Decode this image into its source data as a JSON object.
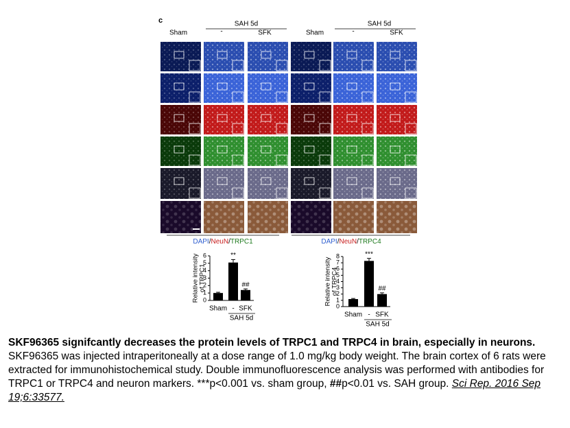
{
  "figure": {
    "panel_label": "c",
    "column_groups": [
      {
        "sham": "Sham",
        "group": "SAH 5d",
        "minus": "-",
        "drug": "SFK"
      },
      {
        "sham": "Sham",
        "group": "SAH 5d",
        "minus": "-",
        "drug": "SFK"
      }
    ],
    "stain_legends": [
      [
        {
          "text": "DAPI",
          "color": "#2f5fd0"
        },
        {
          "text": "/",
          "color": "#000000"
        },
        {
          "text": "NeuN",
          "color": "#c81e1e"
        },
        {
          "text": "/",
          "color": "#000000"
        },
        {
          "text": "TRPC1",
          "color": "#1e7a1e"
        }
      ],
      [
        {
          "text": "DAPI",
          "color": "#2f5fd0"
        },
        {
          "text": "/",
          "color": "#000000"
        },
        {
          "text": "NeuN",
          "color": "#c81e1e"
        },
        {
          "text": "/",
          "color": "#000000"
        },
        {
          "text": "TRPC4",
          "color": "#1e7a1e"
        }
      ]
    ]
  },
  "chart_data": [
    {
      "type": "bar",
      "y_label": [
        "Relative intensity",
        "of TRPC1"
      ],
      "categories": [
        "Sham",
        "-",
        "SFK"
      ],
      "group_label": "SAH 5d",
      "values": [
        1.0,
        5.1,
        1.4
      ],
      "errors": [
        0.1,
        0.4,
        0.15
      ],
      "annotations": [
        {
          "index": 1,
          "text": "**"
        },
        {
          "index": 2,
          "text": "##"
        }
      ],
      "color": "#000000",
      "ylim": [
        0,
        6
      ],
      "yticks": [
        0,
        1,
        2,
        3,
        4,
        5,
        6
      ]
    },
    {
      "type": "bar",
      "y_label": [
        "Relative intensity",
        "of TRPC4"
      ],
      "categories": [
        "Sham",
        "-",
        "SFK"
      ],
      "group_label": "SAH 5d",
      "values": [
        1.2,
        7.3,
        2.0
      ],
      "errors": [
        0.1,
        0.4,
        0.2
      ],
      "annotations": [
        {
          "index": 1,
          "text": "***"
        },
        {
          "index": 2,
          "text": "##"
        }
      ],
      "color": "#000000",
      "ylim": [
        0,
        8
      ],
      "yticks": [
        0,
        1,
        2,
        3,
        4,
        5,
        6,
        7,
        8
      ]
    }
  ],
  "caption": [
    {
      "text": "SKF96365 signifcantly decreases the protein levels of TRPC1 and TRPC4 in brain, especially in neurons.",
      "style": "bold"
    },
    {
      "text": " SKF96365 was injected intraperitoneally at a dose range of 1.0 mg/kg body weight. The brain cortex of 6 rats were extracted for immunohistochemical study. Double immunofluorescence analysis was performed with antibodies for TRPC1 or TRPC4 and neuron markers. ***p<0.001 vs. sham group, ",
      "style": "normal"
    },
    {
      "text": "##",
      "style": "bold"
    },
    {
      "text": "p<0.01 vs. SAH group. ",
      "style": "normal"
    },
    {
      "text": "Sci Rep. 2016 Sep 19;6:33577.",
      "style": "cite"
    }
  ]
}
